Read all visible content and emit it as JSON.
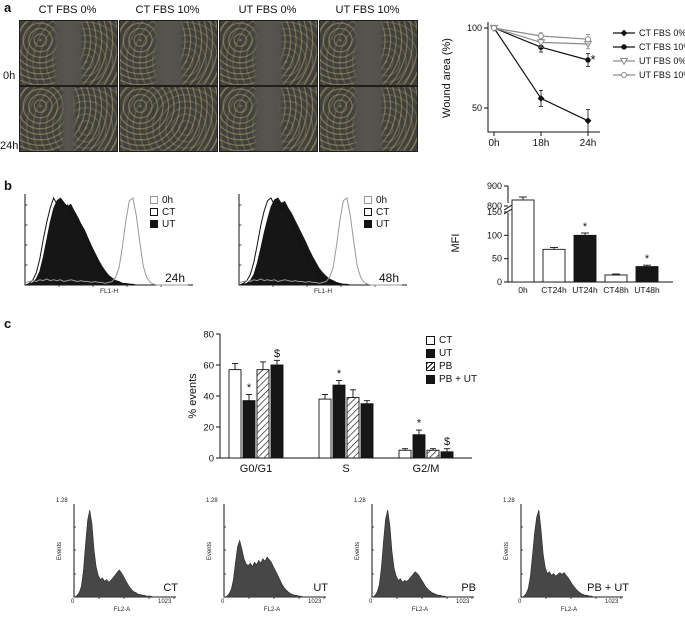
{
  "colors": {
    "series_black": "#111111",
    "series_gray": "#8a8a8a",
    "hist_fill": "#161616",
    "mini_hist_fill": "#474747"
  },
  "panels": {
    "a": {
      "label": "a",
      "row_labels": [
        "0h",
        "24h"
      ],
      "columns": [
        "CT FBS 0%",
        "CT FBS 10%",
        "UT FBS 0%",
        "UT FBS 10%"
      ]
    },
    "b": {
      "label": "b",
      "flow": {
        "legend": [
          "0h",
          "CT",
          "UT"
        ],
        "xlabel": "FL1-H",
        "times": [
          "24h",
          "48h"
        ]
      }
    },
    "c": {
      "label": "c",
      "mini": {
        "ylabel": "Events",
        "ymax_label": "1.28",
        "xmin_label": "0",
        "xmax_label": "1023",
        "xlabel": "FL2-A"
      }
    }
  },
  "chart_data": [
    {
      "id": "wound_area",
      "type": "line",
      "x": [
        "0h",
        "18h",
        "24h"
      ],
      "ylabel": "Wound area (%)",
      "yticks": [
        100,
        50
      ],
      "ylim": [
        35,
        105
      ],
      "annotation": "*",
      "series": [
        {
          "name": "CT FBS 0%",
          "marker": "diamond-filled",
          "color": "#111111",
          "values": [
            100,
            56,
            42
          ],
          "errors": [
            0,
            5,
            7
          ]
        },
        {
          "name": "CT FBS 10%",
          "marker": "circle-filled",
          "color": "#111111",
          "values": [
            100,
            88,
            80
          ],
          "errors": [
            0,
            3,
            4
          ]
        },
        {
          "name": "UT FBS 0%",
          "marker": "triangle-open",
          "color": "#8a8a8a",
          "values": [
            100,
            91,
            90
          ],
          "errors": [
            0,
            3,
            3
          ]
        },
        {
          "name": "UT FBS 10%",
          "marker": "circle-open",
          "color": "#8a8a8a",
          "values": [
            100,
            95,
            93
          ],
          "errors": [
            0,
            2,
            3
          ]
        }
      ]
    },
    {
      "id": "flow_24h",
      "type": "histogram-overlay",
      "xlabel": "FL1-H",
      "time_label": "24h",
      "legend": [
        "0h",
        "CT",
        "UT"
      ],
      "curves": {
        "h0": [
          0.03,
          0.04,
          0.05,
          0.04,
          0.06,
          0.05,
          0.07,
          0.05,
          0.06,
          0.05,
          0.06,
          0.04,
          0.05,
          0.06,
          0.05,
          0.04,
          0.05,
          0.04,
          0.04,
          0.03,
          0.04,
          0.03,
          0.03,
          0.02,
          0.03,
          0.04,
          0.09,
          0.2,
          0.45,
          0.75,
          0.97,
          1.0,
          0.8,
          0.5,
          0.22,
          0.09,
          0.03,
          0.01,
          0,
          0,
          0,
          0,
          0,
          0,
          0,
          0,
          0,
          0
        ],
        "ct": [
          0,
          0.02,
          0.06,
          0.14,
          0.3,
          0.52,
          0.72,
          0.88,
          1.0,
          0.93,
          0.97,
          0.88,
          0.92,
          0.8,
          0.84,
          0.72,
          0.64,
          0.57,
          0.48,
          0.4,
          0.32,
          0.25,
          0.19,
          0.14,
          0.1,
          0.07,
          0.05,
          0.03,
          0.02,
          0.01,
          0.01,
          0,
          0,
          0,
          0,
          0,
          0,
          0,
          0,
          0,
          0,
          0,
          0,
          0,
          0,
          0,
          0,
          0
        ],
        "ut": [
          0,
          0.01,
          0.03,
          0.07,
          0.16,
          0.32,
          0.52,
          0.72,
          0.88,
          0.97,
          1.0,
          0.95,
          0.9,
          0.93,
          0.85,
          0.78,
          0.7,
          0.63,
          0.54,
          0.45,
          0.37,
          0.29,
          0.22,
          0.16,
          0.11,
          0.08,
          0.05,
          0.04,
          0.02,
          0.02,
          0.01,
          0.01,
          0,
          0,
          0,
          0,
          0,
          0,
          0,
          0,
          0,
          0,
          0,
          0,
          0,
          0,
          0,
          0
        ]
      }
    },
    {
      "id": "flow_48h",
      "type": "histogram-overlay",
      "xlabel": "FL1-H",
      "time_label": "48h",
      "legend": [
        "0h",
        "CT",
        "UT"
      ],
      "curves": {
        "h0": [
          0.03,
          0.04,
          0.05,
          0.04,
          0.06,
          0.05,
          0.07,
          0.05,
          0.06,
          0.05,
          0.06,
          0.04,
          0.05,
          0.06,
          0.05,
          0.04,
          0.05,
          0.04,
          0.04,
          0.03,
          0.04,
          0.03,
          0.03,
          0.02,
          0.03,
          0.04,
          0.09,
          0.2,
          0.45,
          0.75,
          0.97,
          1.0,
          0.8,
          0.5,
          0.22,
          0.09,
          0.03,
          0.01,
          0,
          0,
          0,
          0,
          0,
          0,
          0,
          0,
          0,
          0
        ],
        "ct": [
          0,
          0.02,
          0.05,
          0.12,
          0.26,
          0.46,
          0.68,
          0.85,
          0.97,
          1.0,
          0.92,
          0.96,
          0.86,
          0.89,
          0.78,
          0.7,
          0.61,
          0.53,
          0.44,
          0.36,
          0.28,
          0.21,
          0.16,
          0.11,
          0.08,
          0.05,
          0.04,
          0.02,
          0.02,
          0.01,
          0,
          0,
          0,
          0,
          0,
          0,
          0,
          0,
          0,
          0,
          0,
          0,
          0,
          0,
          0,
          0,
          0,
          0
        ],
        "ut": [
          0,
          0.01,
          0.02,
          0.05,
          0.12,
          0.25,
          0.42,
          0.6,
          0.76,
          0.9,
          0.98,
          1.0,
          0.94,
          0.96,
          0.88,
          0.82,
          0.74,
          0.66,
          0.58,
          0.5,
          0.41,
          0.33,
          0.26,
          0.19,
          0.14,
          0.1,
          0.07,
          0.05,
          0.03,
          0.02,
          0.01,
          0.01,
          0,
          0,
          0,
          0,
          0,
          0,
          0,
          0,
          0,
          0,
          0,
          0,
          0,
          0,
          0,
          0
        ]
      }
    },
    {
      "id": "mfi",
      "type": "bar",
      "ylabel": "MFI",
      "axis_break": true,
      "categories": [
        "0h",
        "CT24h",
        "UT24h",
        "CT48h",
        "UT48h"
      ],
      "values": [
        830,
        70,
        100,
        15,
        33
      ],
      "errors": [
        15,
        4,
        5,
        2,
        3
      ],
      "fills": [
        "white",
        "white",
        "black",
        "white",
        "black"
      ],
      "annotations": [
        "",
        "",
        "*",
        "",
        "*"
      ],
      "yticks_upper": [
        900,
        800
      ],
      "yticks_lower": [
        150,
        100,
        50,
        0
      ]
    },
    {
      "id": "cell_cycle",
      "type": "grouped-bar",
      "ylabel": "% events",
      "yticks": [
        80,
        60,
        40,
        20,
        0
      ],
      "ylim": [
        0,
        80
      ],
      "categories": [
        "G0/G1",
        "S",
        "G2/M"
      ],
      "series": [
        {
          "name": "CT",
          "fill": "white",
          "values": [
            57,
            38,
            5
          ],
          "errors": [
            4,
            3,
            1
          ],
          "annotations": [
            "",
            "",
            ""
          ]
        },
        {
          "name": "UT",
          "fill": "black",
          "values": [
            37,
            47,
            15
          ],
          "errors": [
            4,
            3,
            3
          ],
          "annotations": [
            "*",
            "*",
            "*"
          ]
        },
        {
          "name": "PB",
          "fill": "hatch",
          "values": [
            57,
            39,
            5
          ],
          "errors": [
            5,
            5,
            1
          ],
          "annotations": [
            "",
            "",
            ""
          ]
        },
        {
          "name": "PB + UT",
          "fill": "black",
          "values": [
            60,
            35,
            4
          ],
          "errors": [
            3,
            2,
            2
          ],
          "annotations": [
            "$",
            "",
            "$"
          ]
        }
      ]
    },
    {
      "id": "dna_histograms",
      "type": "histogram",
      "xlabel": "FL2-A",
      "ylabel": "Events",
      "ymax_label": "1.28",
      "xmin_label": "0",
      "xmax_label": "1023",
      "panels": [
        {
          "label": "CT",
          "values": [
            0,
            0.02,
            0.05,
            0.12,
            0.3,
            0.6,
            0.88,
            1.0,
            0.85,
            0.55,
            0.35,
            0.25,
            0.2,
            0.22,
            0.18,
            0.2,
            0.17,
            0.19,
            0.22,
            0.25,
            0.28,
            0.31,
            0.28,
            0.24,
            0.19,
            0.15,
            0.11,
            0.08,
            0.06,
            0.05,
            0.03,
            0.03,
            0.02,
            0.02,
            0.01,
            0.01,
            0.01,
            0,
            0,
            0,
            0,
            0,
            0,
            0,
            0,
            0,
            0,
            0
          ]
        },
        {
          "label": "UT",
          "values": [
            0,
            0.01,
            0.04,
            0.09,
            0.2,
            0.4,
            0.58,
            0.65,
            0.55,
            0.44,
            0.38,
            0.36,
            0.39,
            0.35,
            0.4,
            0.37,
            0.42,
            0.39,
            0.44,
            0.41,
            0.46,
            0.43,
            0.4,
            0.35,
            0.3,
            0.25,
            0.2,
            0.15,
            0.11,
            0.08,
            0.06,
            0.04,
            0.03,
            0.02,
            0.02,
            0.01,
            0.01,
            0,
            0,
            0,
            0,
            0,
            0,
            0,
            0,
            0,
            0,
            0
          ]
        },
        {
          "label": "PB",
          "values": [
            0,
            0.02,
            0.06,
            0.14,
            0.34,
            0.64,
            0.9,
            1.0,
            0.82,
            0.52,
            0.33,
            0.24,
            0.19,
            0.21,
            0.17,
            0.19,
            0.18,
            0.2,
            0.23,
            0.26,
            0.29,
            0.27,
            0.24,
            0.2,
            0.16,
            0.12,
            0.09,
            0.07,
            0.05,
            0.04,
            0.03,
            0.02,
            0.02,
            0.01,
            0.01,
            0,
            0,
            0,
            0,
            0,
            0,
            0,
            0,
            0,
            0,
            0,
            0,
            0
          ]
        },
        {
          "label": "PB + UT",
          "values": [
            0,
            0.01,
            0.04,
            0.1,
            0.24,
            0.48,
            0.74,
            0.92,
            1.0,
            0.78,
            0.5,
            0.34,
            0.27,
            0.29,
            0.25,
            0.27,
            0.24,
            0.26,
            0.28,
            0.26,
            0.28,
            0.25,
            0.22,
            0.18,
            0.14,
            0.11,
            0.08,
            0.06,
            0.04,
            0.03,
            0.02,
            0.02,
            0.01,
            0.01,
            0,
            0,
            0,
            0,
            0,
            0,
            0,
            0,
            0,
            0,
            0,
            0,
            0,
            0
          ]
        }
      ]
    }
  ]
}
